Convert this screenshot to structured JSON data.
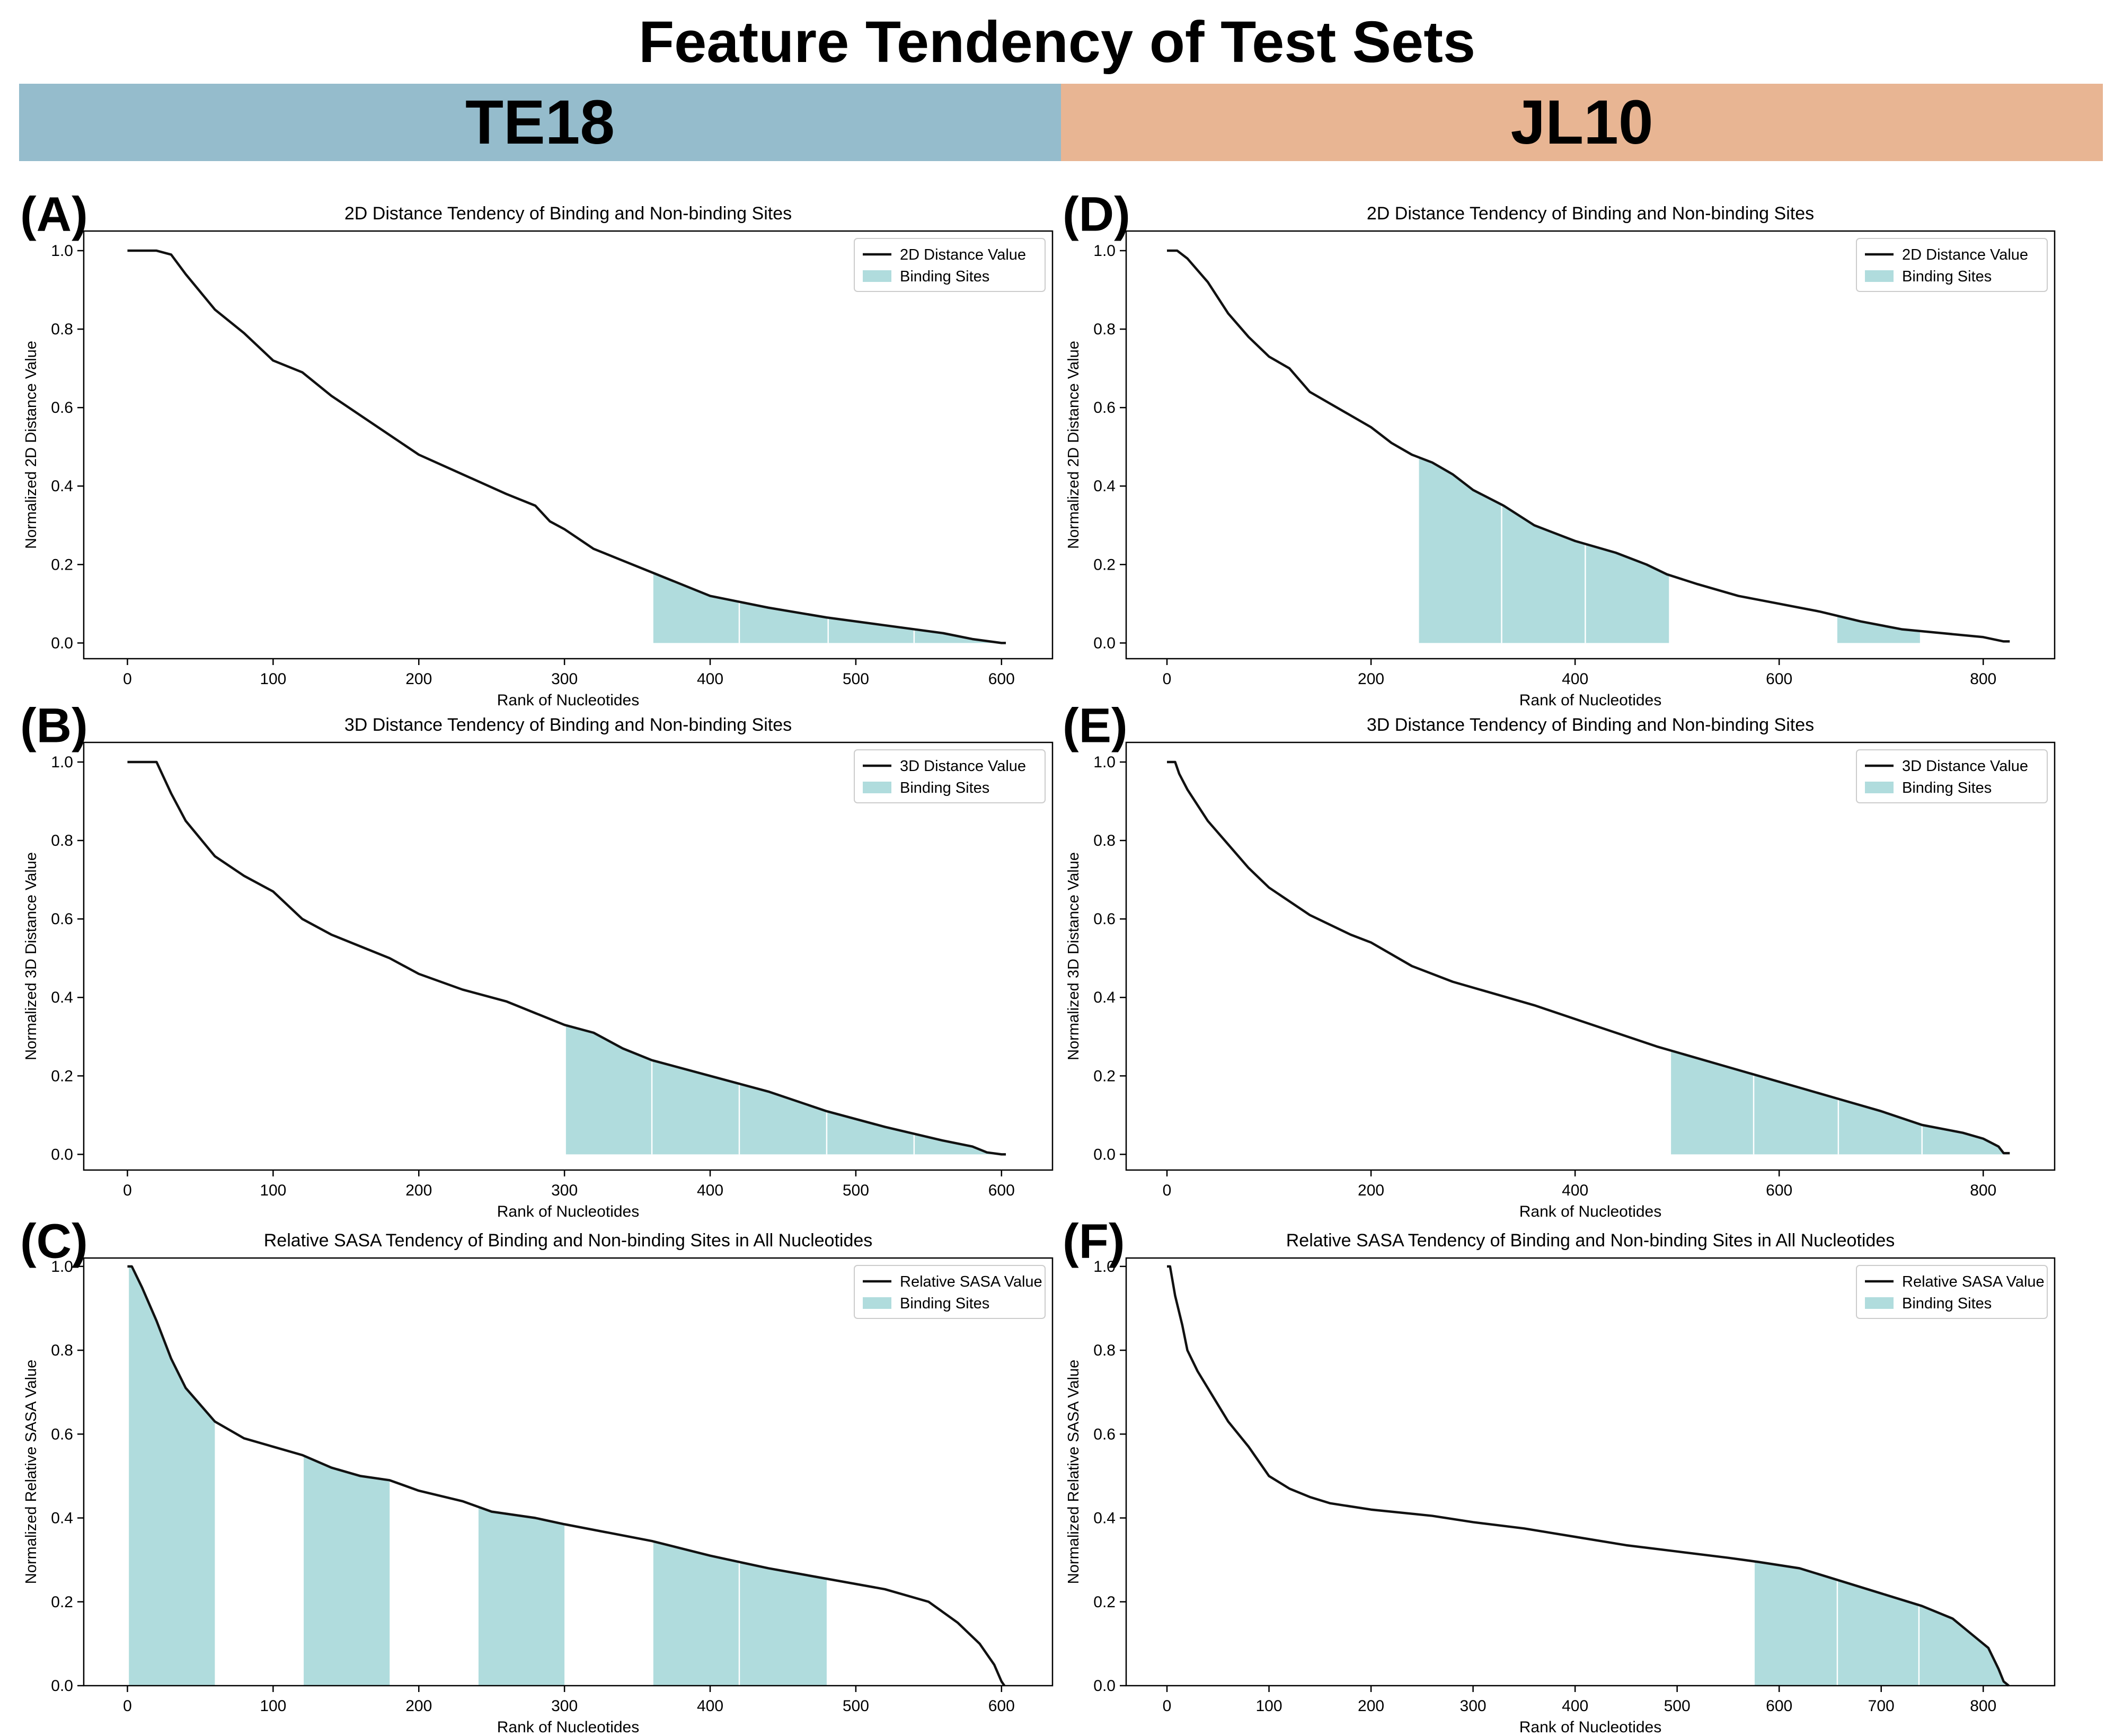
{
  "figure": {
    "title": "Feature Tendency of Test Sets",
    "band_left_label": "TE18",
    "band_left_color": "#95bccc",
    "band_right_label": "JL10",
    "band_right_color": "#e8b593"
  },
  "colors": {
    "line": "#111111",
    "binding": "#b0dcdd",
    "axis": "#000000"
  },
  "chart_data": [
    {
      "panel": "(A)",
      "type": "line",
      "title": "2D Distance Tendency of Binding and Non-binding Sites",
      "xlabel": "Rank of Nucleotides",
      "ylabel": "Normalized 2D Distance Value",
      "xlim": [
        -30,
        635
      ],
      "ylim": [
        -0.04,
        1.05
      ],
      "xticks": [
        0,
        100,
        200,
        300,
        400,
        500,
        600
      ],
      "yticks": [
        0.0,
        0.2,
        0.4,
        0.6,
        0.8,
        1.0
      ],
      "legend": [
        "2D Distance Value",
        "Binding Sites"
      ],
      "series": [
        {
          "name": "2D Distance Value",
          "x": [
            0,
            20,
            30,
            40,
            60,
            80,
            100,
            120,
            140,
            160,
            180,
            200,
            230,
            260,
            280,
            290,
            300,
            320,
            340,
            360,
            400,
            440,
            480,
            520,
            560,
            580,
            600,
            603
          ],
          "y": [
            1.0,
            1.0,
            0.99,
            0.94,
            0.85,
            0.79,
            0.72,
            0.69,
            0.63,
            0.58,
            0.53,
            0.48,
            0.43,
            0.38,
            0.35,
            0.31,
            0.29,
            0.24,
            0.21,
            0.18,
            0.12,
            0.09,
            0.065,
            0.045,
            0.025,
            0.01,
            0.0,
            0.0
          ]
        }
      ],
      "binding_regions": [
        [
          361,
          600
        ]
      ],
      "binding_dividers": [
        420,
        481,
        540
      ]
    },
    {
      "panel": "(B)",
      "type": "line",
      "title": "3D Distance Tendency of Binding and Non-binding Sites",
      "xlabel": "Rank of Nucleotides",
      "ylabel": "Normalized 3D Distance Value",
      "xlim": [
        -30,
        635
      ],
      "ylim": [
        -0.04,
        1.05
      ],
      "xticks": [
        0,
        100,
        200,
        300,
        400,
        500,
        600
      ],
      "yticks": [
        0.0,
        0.2,
        0.4,
        0.6,
        0.8,
        1.0
      ],
      "legend": [
        "3D Distance Value",
        "Binding Sites"
      ],
      "series": [
        {
          "name": "3D Distance Value",
          "x": [
            0,
            20,
            30,
            40,
            60,
            80,
            100,
            120,
            140,
            160,
            180,
            200,
            230,
            260,
            280,
            300,
            320,
            340,
            360,
            400,
            440,
            480,
            520,
            560,
            580,
            590,
            600,
            603
          ],
          "y": [
            1.0,
            1.0,
            0.92,
            0.85,
            0.76,
            0.71,
            0.67,
            0.6,
            0.56,
            0.53,
            0.5,
            0.46,
            0.42,
            0.39,
            0.36,
            0.33,
            0.31,
            0.27,
            0.24,
            0.2,
            0.16,
            0.11,
            0.07,
            0.035,
            0.02,
            0.005,
            0.0,
            0.0
          ]
        }
      ],
      "binding_regions": [
        [
          301,
          600
        ]
      ],
      "binding_dividers": [
        360,
        420,
        480,
        540
      ]
    },
    {
      "panel": "(C)",
      "type": "line",
      "title": "Relative SASA Tendency of Binding and Non-binding Sites in All Nucleotides",
      "xlabel": "Rank of Nucleotides",
      "ylabel": "Normalized Relative SASA Value",
      "xlim": [
        -30,
        635
      ],
      "ylim": [
        0.0,
        1.02
      ],
      "xticks": [
        0,
        100,
        200,
        300,
        400,
        500,
        600
      ],
      "yticks": [
        0.0,
        0.2,
        0.4,
        0.6,
        0.8,
        1.0
      ],
      "legend": [
        "Relative SASA Value",
        "Binding Sites"
      ],
      "series": [
        {
          "name": "Relative SASA Value",
          "x": [
            0,
            3,
            10,
            20,
            30,
            40,
            50,
            60,
            80,
            100,
            120,
            140,
            160,
            180,
            200,
            230,
            250,
            280,
            300,
            330,
            360,
            400,
            440,
            480,
            520,
            550,
            570,
            585,
            595,
            600,
            602
          ],
          "y": [
            1.0,
            1.0,
            0.95,
            0.87,
            0.78,
            0.71,
            0.67,
            0.63,
            0.59,
            0.57,
            0.55,
            0.52,
            0.5,
            0.49,
            0.465,
            0.44,
            0.415,
            0.4,
            0.385,
            0.365,
            0.345,
            0.31,
            0.28,
            0.255,
            0.23,
            0.2,
            0.15,
            0.1,
            0.05,
            0.01,
            0.0
          ]
        }
      ],
      "binding_regions": [
        [
          1,
          60
        ],
        [
          121,
          180
        ],
        [
          241,
          300
        ],
        [
          361,
          480
        ]
      ],
      "binding_dividers": [
        420
      ]
    },
    {
      "panel": "(D)",
      "type": "line",
      "title": "2D Distance Tendency of Binding and Non-binding Sites",
      "xlabel": "Rank of Nucleotides",
      "ylabel": "Normalized 2D Distance Value",
      "xlim": [
        -40,
        870
      ],
      "ylim": [
        -0.04,
        1.05
      ],
      "xticks": [
        0,
        200,
        400,
        600,
        800
      ],
      "yticks": [
        0.0,
        0.2,
        0.4,
        0.6,
        0.8,
        1.0
      ],
      "legend": [
        "2D Distance Value",
        "Binding Sites"
      ],
      "series": [
        {
          "name": "2D Distance Value",
          "x": [
            0,
            10,
            20,
            40,
            60,
            80,
            100,
            120,
            140,
            160,
            180,
            200,
            220,
            240,
            260,
            280,
            300,
            330,
            360,
            400,
            440,
            470,
            490,
            520,
            560,
            600,
            640,
            680,
            720,
            760,
            800,
            820,
            826
          ],
          "y": [
            1.0,
            1.0,
            0.98,
            0.92,
            0.84,
            0.78,
            0.73,
            0.7,
            0.64,
            0.61,
            0.58,
            0.55,
            0.51,
            0.48,
            0.46,
            0.43,
            0.39,
            0.35,
            0.3,
            0.26,
            0.23,
            0.2,
            0.175,
            0.15,
            0.12,
            0.1,
            0.08,
            0.055,
            0.035,
            0.025,
            0.015,
            0.004,
            0.004
          ]
        }
      ],
      "binding_regions": [
        [
          247,
          492
        ],
        [
          657,
          738
        ]
      ],
      "binding_dividers": [
        328,
        410
      ]
    },
    {
      "panel": "(E)",
      "type": "line",
      "title": "3D Distance Tendency of Binding and Non-binding Sites",
      "xlabel": "Rank of Nucleotides",
      "ylabel": "Normalized 3D Distance Value",
      "xlim": [
        -40,
        870
      ],
      "ylim": [
        -0.04,
        1.05
      ],
      "xticks": [
        0,
        200,
        400,
        600,
        800
      ],
      "yticks": [
        0.0,
        0.2,
        0.4,
        0.6,
        0.8,
        1.0
      ],
      "legend": [
        "3D Distance Value",
        "Binding Sites"
      ],
      "series": [
        {
          "name": "3D Distance Value",
          "x": [
            0,
            8,
            12,
            20,
            40,
            60,
            80,
            100,
            140,
            180,
            200,
            240,
            280,
            320,
            360,
            400,
            440,
            480,
            500,
            540,
            580,
            620,
            660,
            700,
            740,
            780,
            800,
            815,
            820,
            826
          ],
          "y": [
            1.0,
            1.0,
            0.97,
            0.93,
            0.85,
            0.79,
            0.73,
            0.68,
            0.61,
            0.56,
            0.54,
            0.48,
            0.44,
            0.41,
            0.38,
            0.345,
            0.31,
            0.275,
            0.26,
            0.23,
            0.2,
            0.17,
            0.14,
            0.11,
            0.075,
            0.055,
            0.04,
            0.02,
            0.003,
            0.003
          ]
        }
      ],
      "binding_regions": [
        [
          494,
          825
        ]
      ],
      "binding_dividers": [
        575,
        658,
        740
      ]
    },
    {
      "panel": "(F)",
      "type": "line",
      "title": "Relative SASA Tendency of Binding and Non-binding Sites in All Nucleotides",
      "xlabel": "Rank of Nucleotides",
      "ylabel": "Normalized Relative SASA Value",
      "xlim": [
        -40,
        870
      ],
      "ylim": [
        0.0,
        1.02
      ],
      "xticks": [
        0,
        100,
        200,
        300,
        400,
        500,
        600,
        700,
        800
      ],
      "yticks": [
        0.0,
        0.2,
        0.4,
        0.6,
        0.8,
        1.0
      ],
      "legend": [
        "Relative SASA Value",
        "Binding Sites"
      ],
      "series": [
        {
          "name": "Relative SASA Value",
          "x": [
            0,
            3,
            8,
            15,
            20,
            30,
            40,
            50,
            60,
            80,
            100,
            120,
            140,
            160,
            200,
            260,
            300,
            350,
            400,
            450,
            500,
            550,
            580,
            620,
            660,
            700,
            740,
            770,
            790,
            805,
            815,
            820,
            825
          ],
          "y": [
            1.0,
            1.0,
            0.93,
            0.86,
            0.8,
            0.75,
            0.71,
            0.67,
            0.63,
            0.57,
            0.5,
            0.47,
            0.45,
            0.435,
            0.42,
            0.405,
            0.39,
            0.375,
            0.355,
            0.335,
            0.32,
            0.305,
            0.295,
            0.28,
            0.25,
            0.22,
            0.19,
            0.16,
            0.12,
            0.09,
            0.04,
            0.01,
            0.0
          ]
        }
      ],
      "binding_regions": [
        [
          576,
          825
        ]
      ],
      "binding_dividers": [
        657,
        737
      ]
    }
  ]
}
